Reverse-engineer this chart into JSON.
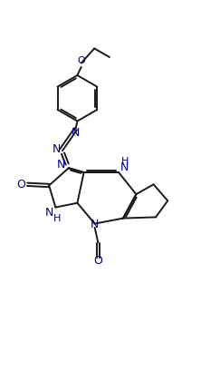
{
  "bg_color": "#ffffff",
  "line_color": "#1a1a1a",
  "label_color": "#00008B",
  "figsize": [
    2.43,
    4.09
  ],
  "dpi": 100,
  "xlim": [
    0,
    10
  ],
  "ylim": [
    0,
    17
  ]
}
